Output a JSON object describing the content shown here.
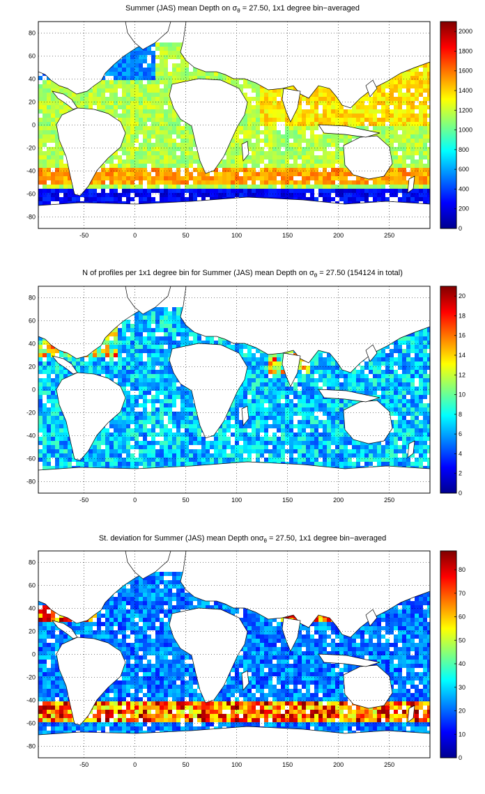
{
  "figure": {
    "panels": [
      {
        "id": "mean-depth",
        "title_prefix": "Summer (JAS) mean Depth on σ",
        "title_sub": "θ",
        "title_suffix": " = 27.50, 1x1 degree bin−averaged",
        "colorbar_ticks": [
          "0",
          "200",
          "400",
          "600",
          "800",
          "1000",
          "1200",
          "1400",
          "1600",
          "1800",
          "2000"
        ],
        "colorbar_range": [
          0,
          2100
        ]
      },
      {
        "id": "profile-count",
        "title_prefix": "N of profiles per 1x1 degree bin for Summer (JAS) mean Depth on σ",
        "title_sub": "θ",
        "title_suffix": " = 27.50 (154124 in total)",
        "colorbar_ticks": [
          "0",
          "2",
          "4",
          "6",
          "8",
          "10",
          "12",
          "14",
          "16",
          "18",
          "20"
        ],
        "colorbar_range": [
          0,
          21
        ]
      },
      {
        "id": "std-deviation",
        "title_prefix": "St. deviation for Summer (JAS) mean Depth onσ",
        "title_sub": "θ",
        "title_suffix": " = 27.50, 1x1 degree bin−averaged",
        "colorbar_ticks": [
          "0",
          "10",
          "20",
          "30",
          "40",
          "50",
          "60",
          "70",
          "80"
        ],
        "colorbar_range": [
          0,
          88
        ]
      }
    ],
    "x_ticks": [
      "-50",
      "0",
      "50",
      "100",
      "150",
      "200",
      "250"
    ],
    "x_tick_values": [
      -50,
      0,
      50,
      100,
      150,
      200,
      250
    ],
    "x_range": [
      -95,
      290
    ],
    "y_ticks": [
      "80",
      "60",
      "40",
      "20",
      "0",
      "-20",
      "-40",
      "-60",
      "-80"
    ],
    "y_tick_values": [
      80,
      60,
      40,
      20,
      0,
      -20,
      -40,
      -60,
      -80
    ],
    "y_range": [
      -90,
      90
    ],
    "colormap": "jet"
  }
}
